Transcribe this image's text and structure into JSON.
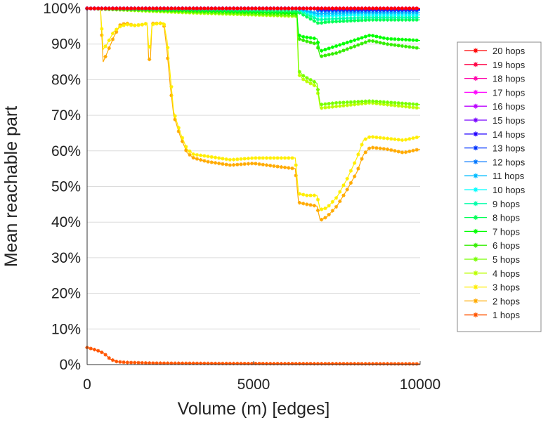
{
  "chart_data": {
    "type": "line",
    "title": "",
    "xlabel": "Volume (m) [edges]",
    "ylabel": "Mean reachable part",
    "xlim": [
      0,
      10000
    ],
    "ylim": [
      0,
      100
    ],
    "x_ticks": [
      0,
      5000,
      10000
    ],
    "x_tick_labels": [
      "0",
      "5000",
      "10000"
    ],
    "y_ticks": [
      0,
      10,
      20,
      30,
      40,
      50,
      60,
      70,
      80,
      90,
      100
    ],
    "y_tick_labels": [
      "0%",
      "10%",
      "20%",
      "30%",
      "40%",
      "50%",
      "60%",
      "70%",
      "80%",
      "90%",
      "100%"
    ],
    "grid": "horizontal",
    "legend_position": "right",
    "marker": "asterisk",
    "series": [
      {
        "name": "20 hops",
        "color": "#ff0000",
        "points": [
          [
            0,
            100
          ],
          [
            10000,
            100
          ]
        ]
      },
      {
        "name": "19 hops",
        "color": "#ff0044",
        "points": [
          [
            0,
            100
          ],
          [
            10000,
            100
          ]
        ]
      },
      {
        "name": "18 hops",
        "color": "#ff00aa",
        "points": [
          [
            0,
            100
          ],
          [
            10000,
            100
          ]
        ]
      },
      {
        "name": "17 hops",
        "color": "#ff00ff",
        "points": [
          [
            0,
            100
          ],
          [
            10000,
            100
          ]
        ]
      },
      {
        "name": "16 hops",
        "color": "#bb00ff",
        "points": [
          [
            0,
            100
          ],
          [
            10000,
            100
          ]
        ]
      },
      {
        "name": "15 hops",
        "color": "#7700ff",
        "points": [
          [
            0,
            100
          ],
          [
            10000,
            100
          ]
        ]
      },
      {
        "name": "14 hops",
        "color": "#2200ff",
        "points": [
          [
            0,
            100
          ],
          [
            6900,
            100
          ],
          [
            7000,
            99.8
          ],
          [
            10000,
            99.8
          ]
        ]
      },
      {
        "name": "13 hops",
        "color": "#0033ff",
        "points": [
          [
            0,
            100
          ],
          [
            6900,
            100
          ],
          [
            7000,
            99.6
          ],
          [
            10000,
            99.6
          ]
        ]
      },
      {
        "name": "12 hops",
        "color": "#0077ff",
        "points": [
          [
            0,
            100
          ],
          [
            6800,
            100
          ],
          [
            6950,
            99.3
          ],
          [
            8000,
            99.3
          ],
          [
            10000,
            99.4
          ]
        ]
      },
      {
        "name": "11 hops",
        "color": "#00bbff",
        "points": [
          [
            0,
            100
          ],
          [
            6300,
            100
          ],
          [
            6950,
            98.5
          ],
          [
            8000,
            98.8
          ],
          [
            10000,
            98.8
          ]
        ]
      },
      {
        "name": "10 hops",
        "color": "#00ffff",
        "points": [
          [
            0,
            100
          ],
          [
            6300,
            100
          ],
          [
            6950,
            97.8
          ],
          [
            8000,
            98.2
          ],
          [
            10000,
            98.2
          ]
        ]
      },
      {
        "name": "9 hops",
        "color": "#00ffaa",
        "points": [
          [
            0,
            100
          ],
          [
            6300,
            99.8
          ],
          [
            6950,
            96.8
          ],
          [
            7200,
            97.0
          ],
          [
            8500,
            97.5
          ],
          [
            10000,
            97.5
          ]
        ]
      },
      {
        "name": "8 hops",
        "color": "#00ff55",
        "points": [
          [
            0,
            100
          ],
          [
            3000,
            99.7
          ],
          [
            6300,
            99.2
          ],
          [
            6950,
            95.8
          ],
          [
            7200,
            96.2
          ],
          [
            8500,
            96.8
          ],
          [
            10000,
            96.8
          ]
        ]
      },
      {
        "name": "7 hops",
        "color": "#00ff00",
        "points": [
          [
            0,
            100
          ],
          [
            3000,
            99.5
          ],
          [
            6300,
            98.8
          ],
          [
            6350,
            92.5
          ],
          [
            6500,
            92.0
          ],
          [
            6900,
            91.5
          ],
          [
            7000,
            88.0
          ],
          [
            7500,
            89.5
          ],
          [
            8500,
            92.5
          ],
          [
            9000,
            91.5
          ],
          [
            10000,
            91.0
          ]
        ]
      },
      {
        "name": "6 hops",
        "color": "#33ee00",
        "points": [
          [
            0,
            100
          ],
          [
            3000,
            99.3
          ],
          [
            6300,
            98.5
          ],
          [
            6350,
            91.5
          ],
          [
            6500,
            91.0
          ],
          [
            6900,
            90.0
          ],
          [
            7000,
            86.5
          ],
          [
            7500,
            87.5
          ],
          [
            8500,
            91.0
          ],
          [
            9000,
            90.0
          ],
          [
            10000,
            88.8
          ]
        ]
      },
      {
        "name": "5 hops",
        "color": "#77ff00",
        "points": [
          [
            0,
            100
          ],
          [
            3000,
            99.0
          ],
          [
            6300,
            98.0
          ],
          [
            6350,
            82.5
          ],
          [
            6500,
            81.0
          ],
          [
            6900,
            79.0
          ],
          [
            7000,
            73.0
          ],
          [
            7500,
            73.5
          ],
          [
            8500,
            74.0
          ],
          [
            10000,
            73.0
          ]
        ]
      },
      {
        "name": "4 hops",
        "color": "#bbff00",
        "points": [
          [
            0,
            100
          ],
          [
            3000,
            98.8
          ],
          [
            6300,
            97.8
          ],
          [
            6350,
            81.5
          ],
          [
            6500,
            80.0
          ],
          [
            6900,
            78.0
          ],
          [
            7000,
            72.0
          ],
          [
            7500,
            72.5
          ],
          [
            8500,
            73.5
          ],
          [
            10000,
            72.0
          ]
        ]
      },
      {
        "name": "3 hops",
        "color": "#ffee00",
        "points": [
          [
            0,
            100
          ],
          [
            400,
            100
          ],
          [
            480,
            88.5
          ],
          [
            600,
            90.0
          ],
          [
            800,
            93.5
          ],
          [
            1000,
            95.0
          ],
          [
            1200,
            95.5
          ],
          [
            1400,
            95.2
          ],
          [
            1700,
            95.5
          ],
          [
            1800,
            95.8
          ],
          [
            1850,
            89.0
          ],
          [
            1900,
            89.5
          ],
          [
            1950,
            95.5
          ],
          [
            2300,
            96.0
          ],
          [
            2400,
            91.0
          ],
          [
            2500,
            81.0
          ],
          [
            2600,
            71.0
          ],
          [
            2800,
            65.0
          ],
          [
            3000,
            60.5
          ],
          [
            3200,
            59.0
          ],
          [
            3600,
            58.5
          ],
          [
            4300,
            57.5
          ],
          [
            5000,
            58.0
          ],
          [
            5800,
            58.0
          ],
          [
            6250,
            58.0
          ],
          [
            6350,
            48.0
          ],
          [
            6600,
            47.5
          ],
          [
            6900,
            47.5
          ],
          [
            7000,
            43.5
          ],
          [
            7200,
            44.0
          ],
          [
            7500,
            47.0
          ],
          [
            7800,
            52.0
          ],
          [
            8100,
            58.0
          ],
          [
            8300,
            63.0
          ],
          [
            8500,
            64.0
          ],
          [
            9000,
            63.5
          ],
          [
            9500,
            63.0
          ],
          [
            10000,
            64.0
          ]
        ]
      },
      {
        "name": "2 hops",
        "color": "#ffaa00",
        "points": [
          [
            0,
            100
          ],
          [
            400,
            100
          ],
          [
            480,
            85.0
          ],
          [
            600,
            87.5
          ],
          [
            800,
            92.0
          ],
          [
            1000,
            95.5
          ],
          [
            1200,
            95.8
          ],
          [
            1400,
            95.2
          ],
          [
            1700,
            95.5
          ],
          [
            1800,
            95.8
          ],
          [
            1850,
            85.5
          ],
          [
            1900,
            86.0
          ],
          [
            1950,
            95.8
          ],
          [
            2300,
            95.8
          ],
          [
            2400,
            88.0
          ],
          [
            2500,
            78.0
          ],
          [
            2600,
            70.0
          ],
          [
            2800,
            64.0
          ],
          [
            3000,
            59.5
          ],
          [
            3200,
            58.0
          ],
          [
            3600,
            57.0
          ],
          [
            4300,
            56.0
          ],
          [
            5000,
            56.5
          ],
          [
            5800,
            55.5
          ],
          [
            6250,
            55.0
          ],
          [
            6350,
            45.5
          ],
          [
            6600,
            45.0
          ],
          [
            6900,
            44.5
          ],
          [
            7000,
            40.5
          ],
          [
            7200,
            41.5
          ],
          [
            7500,
            44.5
          ],
          [
            7800,
            49.0
          ],
          [
            8100,
            54.0
          ],
          [
            8300,
            59.0
          ],
          [
            8500,
            61.0
          ],
          [
            9000,
            60.5
          ],
          [
            9500,
            59.5
          ],
          [
            10000,
            60.5
          ]
        ]
      },
      {
        "name": "1 hops",
        "color": "#ff5500",
        "points": [
          [
            0,
            4.8
          ],
          [
            300,
            4.0
          ],
          [
            500,
            3.2
          ],
          [
            700,
            1.5
          ],
          [
            900,
            0.8
          ],
          [
            1200,
            0.6
          ],
          [
            2000,
            0.4
          ],
          [
            4000,
            0.3
          ],
          [
            10000,
            0.2
          ]
        ]
      }
    ]
  }
}
